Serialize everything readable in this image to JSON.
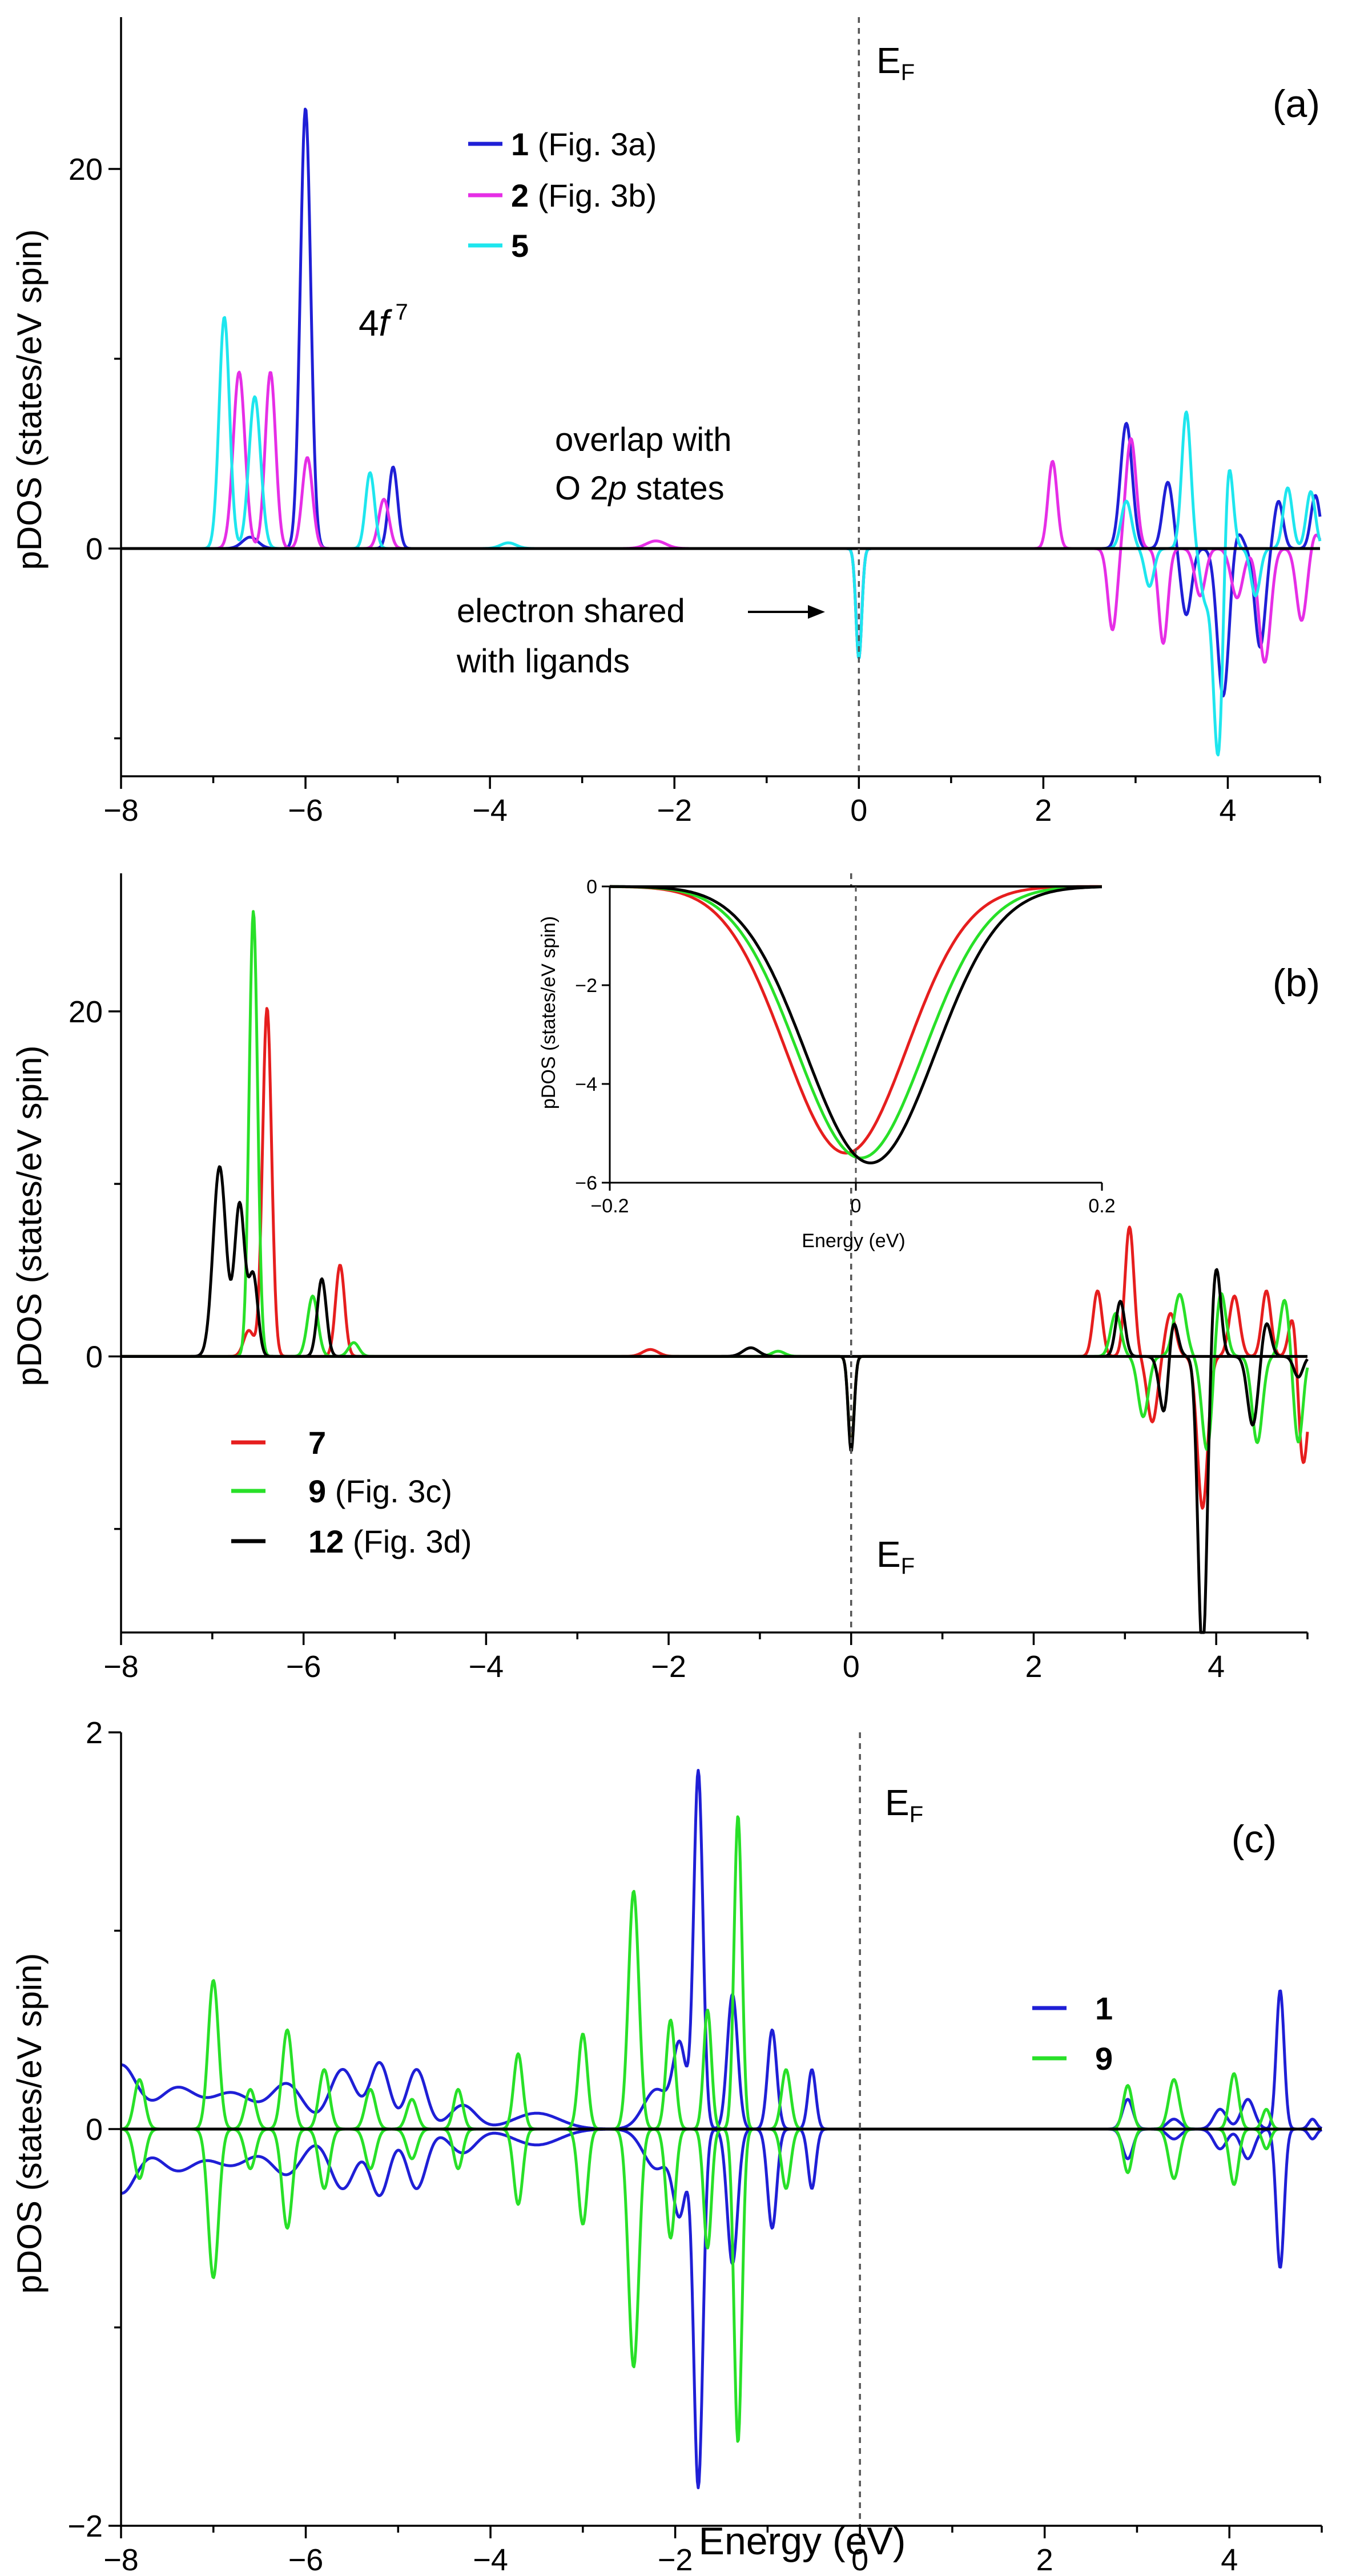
{
  "figure": {
    "xlabel": "Energy (eV)",
    "ylabel": "pDOS (states/eV spin)",
    "ef_main": "E",
    "ef_sub": "F"
  },
  "chart_data": [
    {
      "id": "a",
      "type": "line",
      "panel_label": "(a)",
      "xlim": [
        -8,
        5
      ],
      "ylim": [
        -12,
        28
      ],
      "xticks": [
        -8,
        -6,
        -4,
        -2,
        0,
        2,
        4
      ],
      "yticks": [
        0,
        20
      ],
      "fermi_level": 0,
      "legend": [
        {
          "num": "1",
          "ref": " (Fig. 3a)",
          "color": "#1f1fd6"
        },
        {
          "num": "2",
          "ref": " (Fig. 3b)",
          "color": "#e62ee6"
        },
        {
          "num": "5",
          "ref": "",
          "color": "#1ee6ee"
        }
      ],
      "annotations": {
        "orbital_main": "4",
        "orbital_f": "f",
        "orbital_sup": " 7",
        "overlap_1": "overlap with",
        "overlap_2_pre": "O 2",
        "overlap_2_p": "p",
        "overlap_2_post": " states",
        "shared_1": "electron shared",
        "shared_2": "with ligands"
      },
      "series": [
        {
          "name": "1",
          "color": "#1f1fd6",
          "peaks": [
            [
              -6.0,
              0.08,
              23.2
            ],
            [
              -5.05,
              0.07,
              4.3
            ],
            [
              -6.6,
              0.12,
              0.6
            ],
            [
              0.0,
              0.045,
              -5.8
            ],
            [
              2.9,
              0.09,
              6.6
            ],
            [
              3.35,
              0.08,
              3.5
            ],
            [
              3.55,
              0.08,
              -3.5
            ],
            [
              3.95,
              0.09,
              -7.8
            ],
            [
              4.35,
              0.08,
              -5.2
            ],
            [
              4.55,
              0.07,
              2.5
            ],
            [
              4.95,
              0.07,
              2.8
            ],
            [
              4.1,
              0.08,
              1.0
            ]
          ]
        },
        {
          "name": "2",
          "color": "#e62ee6",
          "peaks": [
            [
              -6.72,
              0.09,
              9.3
            ],
            [
              -6.38,
              0.08,
              9.3
            ],
            [
              -5.98,
              0.08,
              4.8
            ],
            [
              -5.15,
              0.08,
              2.6
            ],
            [
              -2.2,
              0.15,
              0.4
            ],
            [
              0.0,
              0.045,
              -5.5
            ],
            [
              2.1,
              0.07,
              4.6
            ],
            [
              2.75,
              0.07,
              -4.3
            ],
            [
              2.95,
              0.08,
              5.8
            ],
            [
              3.3,
              0.07,
              -5.0
            ],
            [
              3.7,
              0.08,
              -2.5
            ],
            [
              4.1,
              0.09,
              -2.6
            ],
            [
              4.4,
              0.09,
              -6.0
            ],
            [
              4.8,
              0.08,
              -3.8
            ],
            [
              4.95,
              0.07,
              0.8
            ]
          ]
        },
        {
          "name": "5",
          "color": "#1ee6ee",
          "peaks": [
            [
              -6.88,
              0.08,
              12.2
            ],
            [
              -6.55,
              0.09,
              8.0
            ],
            [
              -5.3,
              0.07,
              4.0
            ],
            [
              -3.8,
              0.12,
              0.3
            ],
            [
              0.0,
              0.045,
              -5.8
            ],
            [
              2.9,
              0.08,
              2.5
            ],
            [
              3.15,
              0.07,
              -2.0
            ],
            [
              3.55,
              0.07,
              7.2
            ],
            [
              3.75,
              0.07,
              -2.5
            ],
            [
              3.9,
              0.08,
              -11.5
            ],
            [
              4.0,
              0.07,
              5.8
            ],
            [
              4.3,
              0.07,
              -2.5
            ],
            [
              4.65,
              0.07,
              3.2
            ],
            [
              4.9,
              0.07,
              3.0
            ]
          ]
        }
      ]
    },
    {
      "id": "b",
      "type": "line",
      "panel_label": "(b)",
      "xlim": [
        -8,
        5
      ],
      "ylim": [
        -16,
        28
      ],
      "xticks": [
        -8,
        -6,
        -4,
        -2,
        0,
        2,
        4
      ],
      "yticks": [
        0,
        20
      ],
      "fermi_level": 0,
      "legend": [
        {
          "num": "7",
          "ref": "",
          "color": "#e61e1e"
        },
        {
          "num": "9",
          "ref": "  (Fig. 3c)",
          "color": "#28e028"
        },
        {
          "num": "12",
          "ref": " (Fig. 3d)",
          "color": "#000000"
        }
      ],
      "series": [
        {
          "name": "7",
          "color": "#e61e1e",
          "peaks": [
            [
              -6.4,
              0.07,
              20.2
            ],
            [
              -6.6,
              0.08,
              1.5
            ],
            [
              -5.6,
              0.07,
              5.3
            ],
            [
              -2.2,
              0.12,
              0.4
            ],
            [
              0.0,
              0.045,
              -5.3
            ],
            [
              2.7,
              0.07,
              3.8
            ],
            [
              3.05,
              0.07,
              7.5
            ],
            [
              3.3,
              0.08,
              -3.8
            ],
            [
              3.5,
              0.08,
              2.5
            ],
            [
              3.85,
              0.08,
              -8.8
            ],
            [
              4.2,
              0.08,
              3.5
            ],
            [
              4.55,
              0.07,
              3.8
            ],
            [
              4.95,
              0.08,
              -6.5
            ],
            [
              4.85,
              0.07,
              3.0
            ]
          ]
        },
        {
          "name": "9",
          "color": "#28e028",
          "peaks": [
            [
              -6.55,
              0.065,
              25.8
            ],
            [
              -5.9,
              0.08,
              3.5
            ],
            [
              -5.45,
              0.08,
              0.8
            ],
            [
              -0.8,
              0.1,
              0.3
            ],
            [
              0.0,
              0.045,
              -5.4
            ],
            [
              2.9,
              0.08,
              2.5
            ],
            [
              3.2,
              0.08,
              -3.5
            ],
            [
              3.6,
              0.09,
              3.6
            ],
            [
              3.9,
              0.08,
              -5.5
            ],
            [
              4.05,
              0.08,
              3.8
            ],
            [
              4.45,
              0.08,
              -5.0
            ],
            [
              4.75,
              0.07,
              3.3
            ],
            [
              4.9,
              0.07,
              -5.0
            ]
          ]
        },
        {
          "name": "12",
          "color": "#000000",
          "peaks": [
            [
              -6.92,
              0.1,
              11.0
            ],
            [
              -6.7,
              0.08,
              8.8
            ],
            [
              -6.55,
              0.07,
              4.6
            ],
            [
              -5.8,
              0.07,
              4.5
            ],
            [
              -1.1,
              0.12,
              0.5
            ],
            [
              0.0,
              0.045,
              -5.5
            ],
            [
              2.95,
              0.07,
              3.2
            ],
            [
              3.45,
              0.08,
              -5.5
            ],
            [
              3.5,
              0.08,
              4.4
            ],
            [
              3.85,
              0.07,
              -17.5
            ],
            [
              4.0,
              0.07,
              5.2
            ],
            [
              4.4,
              0.08,
              -4.0
            ],
            [
              4.55,
              0.07,
              2.0
            ],
            [
              4.9,
              0.07,
              -1.2
            ]
          ]
        }
      ],
      "inset": {
        "xlim": [
          -0.2,
          0.2
        ],
        "ylim": [
          -6,
          0
        ],
        "xticks": [
          -0.2,
          0,
          0.2
        ],
        "yticks": [
          0,
          -2,
          -4,
          -6
        ],
        "xlabel": "Energy (eV)",
        "ylabel": "pDOS (states/eV spin)",
        "series": [
          {
            "name": "7",
            "color": "#e61e1e",
            "center": -0.008,
            "width": 0.07,
            "depth": 5.4
          },
          {
            "name": "9",
            "color": "#28e028",
            "center": 0.004,
            "width": 0.073,
            "depth": 5.5
          },
          {
            "name": "12",
            "color": "#000000",
            "center": 0.012,
            "width": 0.074,
            "depth": 5.6
          }
        ]
      }
    },
    {
      "id": "c",
      "type": "line",
      "panel_label": "(c)",
      "xlim": [
        -8,
        5
      ],
      "ylim": [
        -2,
        2
      ],
      "xticks": [
        -8,
        -6,
        -4,
        -2,
        0,
        2,
        4
      ],
      "yticks": [
        -2,
        0,
        2
      ],
      "fermi_level": 0,
      "symmetric": true,
      "legend": [
        {
          "num": "1",
          "ref": "",
          "color": "#1f1fd6"
        },
        {
          "num": "9",
          "ref": "",
          "color": "#28e028"
        }
      ],
      "series": [
        {
          "name": "1",
          "color": "#1f1fd6",
          "peaks": [
            [
              -8.0,
              0.25,
              0.32
            ],
            [
              -7.4,
              0.3,
              0.2
            ],
            [
              -6.8,
              0.35,
              0.18
            ],
            [
              -6.2,
              0.25,
              0.22
            ],
            [
              -5.6,
              0.2,
              0.3
            ],
            [
              -5.2,
              0.15,
              0.33
            ],
            [
              -4.8,
              0.15,
              0.3
            ],
            [
              -4.3,
              0.2,
              0.12
            ],
            [
              -3.5,
              0.35,
              0.08
            ],
            [
              -2.2,
              0.2,
              0.2
            ],
            [
              -1.95,
              0.1,
              0.4
            ],
            [
              -1.75,
              0.07,
              1.8
            ],
            [
              -1.38,
              0.08,
              0.68
            ],
            [
              -0.95,
              0.07,
              0.5
            ],
            [
              -0.52,
              0.06,
              0.3
            ],
            [
              2.9,
              0.08,
              0.15
            ],
            [
              3.4,
              0.1,
              0.05
            ],
            [
              3.9,
              0.1,
              0.1
            ],
            [
              4.2,
              0.1,
              0.15
            ],
            [
              4.55,
              0.06,
              0.7
            ],
            [
              4.9,
              0.06,
              0.05
            ]
          ]
        },
        {
          "name": "9",
          "color": "#28e028",
          "peaks": [
            [
              -7.8,
              0.08,
              0.25
            ],
            [
              -7.0,
              0.08,
              0.75
            ],
            [
              -6.6,
              0.08,
              0.2
            ],
            [
              -6.2,
              0.08,
              0.5
            ],
            [
              -5.8,
              0.08,
              0.3
            ],
            [
              -5.3,
              0.08,
              0.2
            ],
            [
              -4.85,
              0.08,
              0.15
            ],
            [
              -4.35,
              0.07,
              0.2
            ],
            [
              -3.7,
              0.07,
              0.38
            ],
            [
              -3.0,
              0.07,
              0.48
            ],
            [
              -2.45,
              0.08,
              1.2
            ],
            [
              -2.05,
              0.07,
              0.55
            ],
            [
              -1.65,
              0.06,
              0.6
            ],
            [
              -1.32,
              0.06,
              1.58
            ],
            [
              -0.8,
              0.07,
              0.3
            ],
            [
              2.9,
              0.07,
              0.22
            ],
            [
              3.4,
              0.08,
              0.25
            ],
            [
              4.05,
              0.07,
              0.28
            ],
            [
              4.4,
              0.06,
              0.1
            ]
          ]
        }
      ]
    }
  ]
}
